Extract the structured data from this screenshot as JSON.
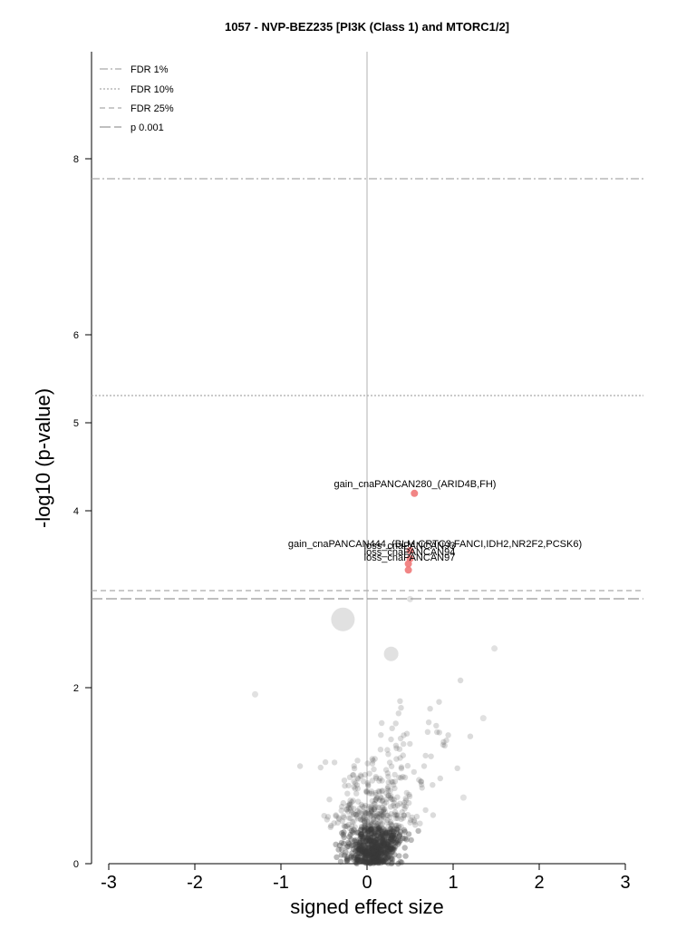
{
  "chart_data": {
    "type": "scatter",
    "title": "1057 - NVP-BEZ235 [PI3K (Class 1) and MTORC1/2]",
    "xlabel": "signed effect size",
    "ylabel": "-log10 (p-value)",
    "xlim": [
      -3.2,
      3.2
    ],
    "ylim": [
      0,
      9.2
    ],
    "xticks": [
      -3,
      -2,
      -1,
      0,
      1,
      2,
      3
    ],
    "xtick_labels": [
      "-3",
      "-2",
      "-1",
      "0",
      "1",
      "2",
      "3"
    ],
    "yticks": [
      0,
      2,
      4,
      5,
      6,
      8
    ],
    "ytick_labels": [
      "0",
      "2",
      "4",
      "5",
      "6",
      "8"
    ],
    "grid": false,
    "legend_position": "top-left",
    "thresholds": [
      {
        "name": "FDR 1%",
        "y": 7.77,
        "style": "dashdot",
        "color": "#aaaaaa"
      },
      {
        "name": "FDR 10%",
        "y": 5.29,
        "style": "dotted",
        "color": "#aaaaaa"
      },
      {
        "name": "FDR 25%",
        "y": 3.1,
        "style": "dashed",
        "color": "#aaaaaa"
      },
      {
        "name": "p 0.001",
        "y": 3.0,
        "style": "longdash",
        "color": "#999999"
      }
    ],
    "colors": {
      "significant": "#f07878",
      "background": "#3a3a3a",
      "threshold": "#aaaaaa",
      "zero_line": "#cccccc"
    },
    "significant_points": [
      {
        "x": 0.55,
        "y": 4.2,
        "label": "gain_cnaPANCAN280_(ARID4B,FH)"
      },
      {
        "x": 0.5,
        "y": 3.55,
        "label": "gain_cnaPANCAN444_(BLM,CRTC3,FANCI,IDH2,NR2F2,PCSK6)"
      },
      {
        "x": 0.5,
        "y": 3.46,
        "label": "loss_cnaPANCAN93"
      },
      {
        "x": 0.48,
        "y": 3.4,
        "label": "loss_cnaPANCAN94"
      },
      {
        "x": 0.48,
        "y": 3.33,
        "label": "loss_cnaPANCAN97"
      }
    ],
    "labeled_background_points": [
      {
        "x": -0.28,
        "y": 2.77,
        "size": "large"
      },
      {
        "x": 0.28,
        "y": 2.38,
        "size": "medium"
      },
      {
        "x": 0.5,
        "y": 3.0,
        "size": "small"
      },
      {
        "x": -1.3,
        "y": 1.92,
        "size": "small"
      },
      {
        "x": 1.48,
        "y": 2.44,
        "size": "small"
      },
      {
        "x": 1.35,
        "y": 1.65,
        "size": "small"
      },
      {
        "x": 1.12,
        "y": 0.75,
        "size": "small"
      }
    ]
  },
  "annotations": {
    "label_280": "gain_cnaPANCAN280_(ARID4B,FH)",
    "label_444": "gain_cnaPANCAN444_(BLM,CRTC3,FANCI,IDH2,NR2F2,PCSK6)",
    "label_93": "loss_cnaPANCAN93",
    "label_94": "loss_cnaPANCAN94",
    "label_97": "loss_cnaPANCAN97"
  },
  "legend": [
    {
      "label": "FDR 1%"
    },
    {
      "label": "FDR 10%"
    },
    {
      "label": "FDR 25%"
    },
    {
      "label": "p 0.001"
    }
  ]
}
